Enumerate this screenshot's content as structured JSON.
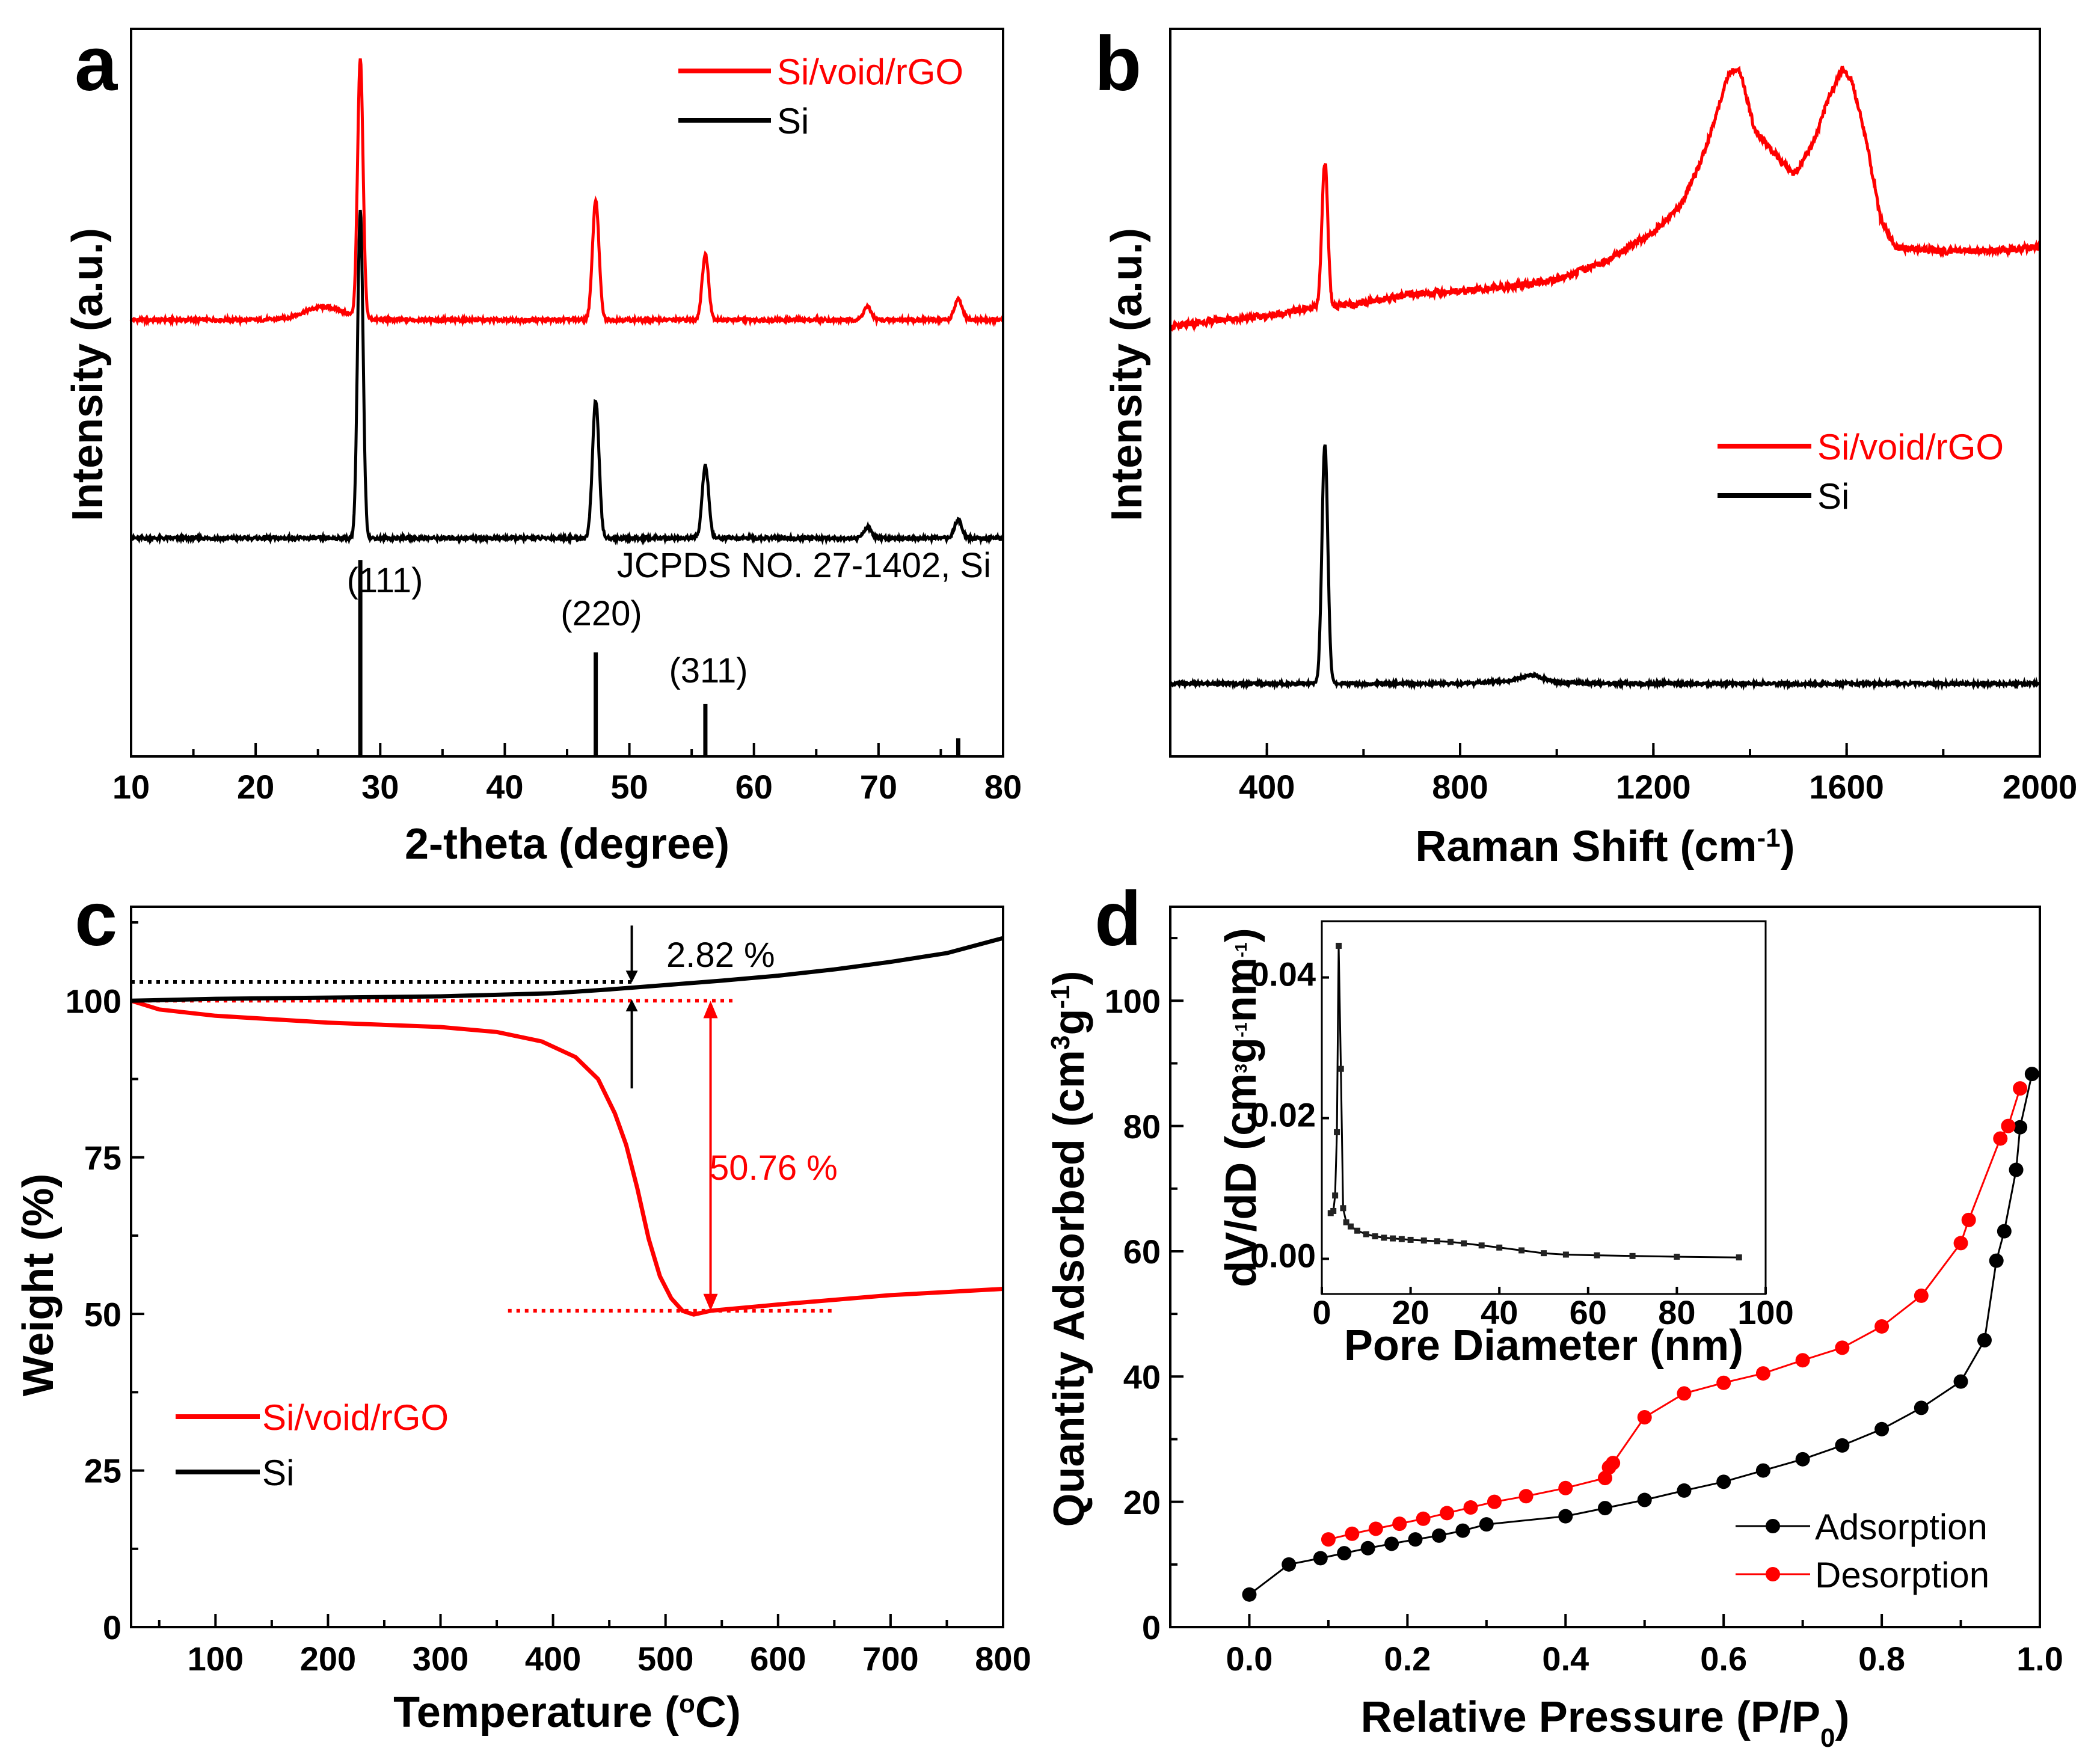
{
  "chart_data": [
    {
      "panel": "a",
      "type": "line",
      "xlabel": "2-theta (degree)",
      "ylabel": "Intensity (a.u.)",
      "xlim": [
        10,
        80
      ],
      "xticks": [
        10,
        20,
        30,
        40,
        50,
        60,
        70,
        80
      ],
      "legend": {
        "position": "top-right",
        "entries": [
          {
            "name": "Si/void/rGO",
            "color": "#ff0000"
          },
          {
            "name": "Si",
            "color": "#000000"
          }
        ]
      },
      "series": [
        {
          "name": "Si/void/rGO",
          "color": "#ff0000",
          "baseline": 0.6,
          "peaks": [
            [
              25.5,
              0.018,
              1.6
            ],
            [
              28.4,
              0.355,
              0.22
            ],
            [
              47.3,
              0.165,
              0.26
            ],
            [
              56.1,
              0.09,
              0.26
            ],
            [
              69.1,
              0.018,
              0.3
            ],
            [
              76.4,
              0.028,
              0.3
            ]
          ]
        },
        {
          "name": "Si",
          "color": "#000000",
          "baseline": 0.3,
          "peaks": [
            [
              28.4,
              0.45,
              0.22
            ],
            [
              47.3,
              0.19,
              0.26
            ],
            [
              56.1,
              0.1,
              0.26
            ],
            [
              69.1,
              0.015,
              0.3
            ],
            [
              76.4,
              0.025,
              0.3
            ]
          ]
        }
      ],
      "reference": {
        "label": "JCPDS NO. 27-1402, Si",
        "lines": [
          {
            "x": 28.4,
            "height": 0.27,
            "hkl": "(111)"
          },
          {
            "x": 47.3,
            "height": 0.143,
            "hkl": "(220)"
          },
          {
            "x": 56.1,
            "height": 0.072,
            "hkl": "(311)"
          },
          {
            "x": 69.1,
            "height": 0.0,
            "hkl": ""
          },
          {
            "x": 76.4,
            "height": 0.025,
            "hkl": ""
          }
        ]
      }
    },
    {
      "panel": "b",
      "type": "line",
      "xlabel": "Raman Shift (cm",
      "xlabel_sup": "-1",
      "xlabel_end": ")",
      "ylabel": "Intensity (a.u.)",
      "xlim": [
        200,
        2000
      ],
      "xticks": [
        400,
        800,
        1200,
        1600,
        2000
      ],
      "legend": {
        "position": "middle-right",
        "entries": [
          {
            "name": "Si/void/rGO",
            "color": "#ff0000"
          },
          {
            "name": "Si",
            "color": "#000000"
          }
        ]
      },
      "series": [
        {
          "name": "Si/void/rGO",
          "color": "#ff0000",
          "anchors": [
            [
              200,
              0.59
            ],
            [
              300,
              0.6
            ],
            [
              400,
              0.605
            ],
            [
              480,
              0.615
            ],
            [
              560,
              0.62
            ],
            [
              700,
              0.635
            ],
            [
              900,
              0.645
            ],
            [
              1000,
              0.655
            ],
            [
              1100,
              0.68
            ],
            [
              1200,
              0.72
            ],
            [
              1260,
              0.76
            ],
            [
              1300,
              0.82
            ],
            [
              1330,
              0.88
            ],
            [
              1350,
              0.93
            ],
            [
              1365,
              0.945
            ],
            [
              1380,
              0.94
            ],
            [
              1410,
              0.86
            ],
            [
              1450,
              0.83
            ],
            [
              1490,
              0.8
            ],
            [
              1530,
              0.84
            ],
            [
              1560,
              0.9
            ],
            [
              1590,
              0.945
            ],
            [
              1610,
              0.93
            ],
            [
              1640,
              0.85
            ],
            [
              1670,
              0.74
            ],
            [
              1700,
              0.7
            ],
            [
              1800,
              0.695
            ],
            [
              1900,
              0.695
            ],
            [
              2000,
              0.7
            ]
          ],
          "peaks": [
            [
              520,
              0.2,
              6
            ]
          ]
        },
        {
          "name": "Si",
          "color": "#000000",
          "anchors": [
            [
              200,
              0.1
            ],
            [
              800,
              0.1
            ],
            [
              900,
              0.104
            ],
            [
              950,
              0.112
            ],
            [
              1000,
              0.102
            ],
            [
              1100,
              0.1
            ],
            [
              2000,
              0.1
            ]
          ],
          "peaks": [
            [
              520,
              0.33,
              6
            ]
          ]
        }
      ]
    },
    {
      "panel": "c",
      "type": "line",
      "xlabel": "Temperature (",
      "xlabel_deg": "o",
      "xlabel_end": "C)",
      "ylabel": "Weight (%)",
      "xlim": [
        25,
        800
      ],
      "ylim": [
        0,
        115
      ],
      "xticks": [
        100,
        200,
        300,
        400,
        500,
        600,
        700,
        800
      ],
      "yticks": [
        0,
        25,
        50,
        75,
        100
      ],
      "legend": {
        "position": "bottom-left",
        "entries": [
          {
            "name": "Si/void/rGO",
            "color": "#ff0000"
          },
          {
            "name": "Si",
            "color": "#000000"
          }
        ]
      },
      "series": [
        {
          "name": "Si/void/rGO",
          "color": "#ff0000",
          "points": [
            [
              25,
              100
            ],
            [
              50,
              98.6
            ],
            [
              100,
              97.6
            ],
            [
              200,
              96.5
            ],
            [
              300,
              95.8
            ],
            [
              350,
              95.0
            ],
            [
              390,
              93.5
            ],
            [
              420,
              91.0
            ],
            [
              440,
              87.5
            ],
            [
              455,
              82.0
            ],
            [
              465,
              77.0
            ],
            [
              475,
              70.0
            ],
            [
              485,
              62.0
            ],
            [
              495,
              56.0
            ],
            [
              505,
              52.5
            ],
            [
              515,
              50.5
            ],
            [
              525,
              49.9
            ],
            [
              540,
              50.5
            ],
            [
              600,
              51.5
            ],
            [
              700,
              53.0
            ],
            [
              800,
              54.0
            ]
          ]
        },
        {
          "name": "Si",
          "color": "#000000",
          "points": [
            [
              25,
              100
            ],
            [
              100,
              100.3
            ],
            [
              200,
              100.5
            ],
            [
              300,
              100.7
            ],
            [
              400,
              101.2
            ],
            [
              450,
              101.8
            ],
            [
              500,
              102.5
            ],
            [
              550,
              103.2
            ],
            [
              600,
              104.0
            ],
            [
              650,
              105.0
            ],
            [
              700,
              106.2
            ],
            [
              750,
              107.6
            ],
            [
              800,
              110.0
            ]
          ]
        }
      ],
      "guides": [
        {
          "color": "#000000",
          "y": 103,
          "x": [
            25,
            470
          ]
        },
        {
          "color": "#ff0000",
          "y": 100,
          "x": [
            25,
            560
          ]
        },
        {
          "color": "#ff0000",
          "y": 50.5,
          "x": [
            360,
            650
          ]
        }
      ],
      "annotations": [
        {
          "text": "2.82 %",
          "color": "#000000"
        },
        {
          "text": "50.76 %",
          "color": "#ff0000"
        }
      ]
    },
    {
      "panel": "d",
      "type": "scatter",
      "xlabel": "Relative Pressure (P/P",
      "xlabel_sub": "0",
      "xlabel_end": ")",
      "ylabel": "Quantity Adsorbed (cm",
      "ylabel_sup1": "3",
      "ylabel_mid": "g",
      "ylabel_sup2": "-1",
      "ylabel_end": ")",
      "xlim": [
        -0.1,
        1.0
      ],
      "ylim": [
        0,
        115
      ],
      "xticks": [
        "0.0",
        "0.2",
        "0.4",
        "0.6",
        "0.8",
        "1.0"
      ],
      "yticks": [
        0,
        20,
        40,
        60,
        80,
        100
      ],
      "legend": {
        "position": "bottom-right",
        "entries": [
          {
            "name": "Adsorption",
            "color": "#000000"
          },
          {
            "name": "Desorption",
            "color": "#ff0000"
          }
        ]
      },
      "series": [
        {
          "name": "Adsorption",
          "color": "#000000",
          "points": [
            [
              0.0,
              5.2
            ],
            [
              0.05,
              10.0
            ],
            [
              0.09,
              11.0
            ],
            [
              0.12,
              11.8
            ],
            [
              0.15,
              12.6
            ],
            [
              0.18,
              13.3
            ],
            [
              0.21,
              14.0
            ],
            [
              0.24,
              14.6
            ],
            [
              0.27,
              15.4
            ],
            [
              0.3,
              16.4
            ],
            [
              0.4,
              17.7
            ],
            [
              0.45,
              19.0
            ],
            [
              0.5,
              20.3
            ],
            [
              0.55,
              21.8
            ],
            [
              0.6,
              23.2
            ],
            [
              0.65,
              25.0
            ],
            [
              0.7,
              26.8
            ],
            [
              0.75,
              29.0
            ],
            [
              0.8,
              31.6
            ],
            [
              0.85,
              35.0
            ],
            [
              0.9,
              39.2
            ],
            [
              0.93,
              45.8
            ],
            [
              0.945,
              58.5
            ],
            [
              0.955,
              63.2
            ],
            [
              0.97,
              73.0
            ],
            [
              0.975,
              79.8
            ],
            [
              0.99,
              88.3
            ]
          ]
        },
        {
          "name": "Desorption",
          "color": "#ff0000",
          "points": [
            [
              0.1,
              14.0
            ],
            [
              0.13,
              14.9
            ],
            [
              0.16,
              15.7
            ],
            [
              0.19,
              16.5
            ],
            [
              0.22,
              17.3
            ],
            [
              0.25,
              18.2
            ],
            [
              0.28,
              19.1
            ],
            [
              0.31,
              20.0
            ],
            [
              0.35,
              20.9
            ],
            [
              0.4,
              22.2
            ],
            [
              0.45,
              23.8
            ],
            [
              0.455,
              25.5
            ],
            [
              0.46,
              26.2
            ],
            [
              0.5,
              33.5
            ],
            [
              0.55,
              37.3
            ],
            [
              0.6,
              39.0
            ],
            [
              0.65,
              40.5
            ],
            [
              0.7,
              42.6
            ],
            [
              0.75,
              44.6
            ],
            [
              0.8,
              48.0
            ],
            [
              0.85,
              52.9
            ],
            [
              0.9,
              61.3
            ],
            [
              0.91,
              65.0
            ],
            [
              0.95,
              78.0
            ],
            [
              0.96,
              80.0
            ],
            [
              0.975,
              86.0
            ]
          ]
        }
      ],
      "inset": {
        "type": "line",
        "xlabel": "Pore Diameter (nm)",
        "ylabel": "dV/dD (cm",
        "ylabel_sup1": "3",
        "ylabel_mid": "g",
        "ylabel_sup2": "-1",
        "ylabel_mid2": "nm",
        "ylabel_sup3": "-1",
        "ylabel_end": ")",
        "xlim": [
          0,
          100
        ],
        "ylim": [
          -0.005,
          0.048
        ],
        "xticks": [
          0,
          20,
          40,
          60,
          80,
          100
        ],
        "yticks": [
          "0.00",
          "0.02",
          "0.04"
        ],
        "points": [
          [
            2.0,
            0.0065
          ],
          [
            2.6,
            0.0068
          ],
          [
            3.0,
            0.009
          ],
          [
            3.4,
            0.018
          ],
          [
            3.8,
            0.0445
          ],
          [
            4.3,
            0.027
          ],
          [
            4.8,
            0.0072
          ],
          [
            5.5,
            0.0052
          ],
          [
            6.5,
            0.0046
          ],
          [
            8.0,
            0.004
          ],
          [
            10.0,
            0.0035
          ],
          [
            12.0,
            0.0032
          ],
          [
            14.0,
            0.003
          ],
          [
            16.0,
            0.0029
          ],
          [
            18.0,
            0.0028
          ],
          [
            20.0,
            0.0027
          ],
          [
            23.0,
            0.0026
          ],
          [
            26.0,
            0.0025
          ],
          [
            29.0,
            0.0024
          ],
          [
            32.0,
            0.0022
          ],
          [
            36.0,
            0.0019
          ],
          [
            40.0,
            0.0016
          ],
          [
            45.0,
            0.0012
          ],
          [
            50.0,
            0.0008
          ],
          [
            55.0,
            0.0006
          ],
          [
            62.0,
            0.0005
          ],
          [
            70.0,
            0.0004
          ],
          [
            80.0,
            0.0003
          ],
          [
            94.0,
            0.0002
          ]
        ]
      }
    }
  ],
  "panel_labels": [
    "a",
    "b",
    "c",
    "d"
  ]
}
